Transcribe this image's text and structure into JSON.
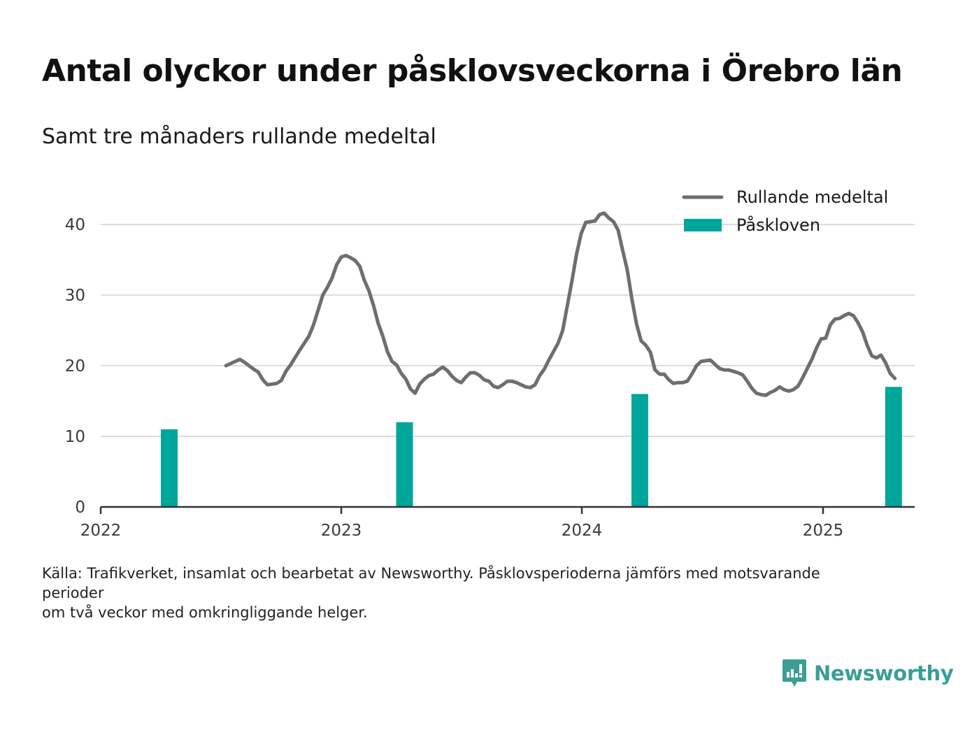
{
  "title": "Antal olyckor under påsklovsveckorna i Örebro län",
  "subtitle": "Samt tre månaders rullande medeltal",
  "footnote": {
    "line1": "Källa: Trafikverket, insamlat och bearbetat av Newsworthy. Påsklovsperioderna jämförs med motsvarande",
    "line2": "perioder",
    "line3": "om två veckor med omkringliggande helger."
  },
  "logo": {
    "text": "Newsworthy",
    "icon": "bar-chart-speech-bubble-icon",
    "color": "#3a9e95"
  },
  "colors": {
    "line": "#6e6e70",
    "bars": "#00a699",
    "grid": "#dddddd",
    "axis": "#333333"
  },
  "chart_data": {
    "type": "bar+line",
    "xlabel": "",
    "ylabel": "",
    "xlim": [
      "2022-01-01",
      "2025-05-20"
    ],
    "ylim": [
      0,
      42
    ],
    "y_ticks": [
      0,
      10,
      20,
      30,
      40
    ],
    "x_ticks": [
      {
        "label": "2022",
        "date": "2022-01-01"
      },
      {
        "label": "2023",
        "date": "2023-01-01"
      },
      {
        "label": "2024",
        "date": "2024-01-01"
      },
      {
        "label": "2025",
        "date": "2025-01-01"
      }
    ],
    "grid": true,
    "legend": {
      "placement": "top-right",
      "items": [
        "Rullande medeltal",
        "Påskloven"
      ]
    },
    "series": [
      {
        "name": "Påskloven",
        "type": "bar",
        "points": [
          {
            "x": "2022-04-15",
            "y": 11
          },
          {
            "x": "2023-04-07",
            "y": 12
          },
          {
            "x": "2024-03-29",
            "y": 16
          },
          {
            "x": "2025-04-18",
            "y": 17
          }
        ]
      },
      {
        "name": "Rullande medeltal",
        "type": "line",
        "points": [
          {
            "x": "2022-07-10",
            "y": 20.0
          },
          {
            "x": "2022-07-31",
            "y": 20.9
          },
          {
            "x": "2022-08-07",
            "y": 20.5
          },
          {
            "x": "2022-08-21",
            "y": 19.5
          },
          {
            "x": "2022-08-28",
            "y": 19.1
          },
          {
            "x": "2022-09-04",
            "y": 18.0
          },
          {
            "x": "2022-09-11",
            "y": 17.3
          },
          {
            "x": "2022-09-25",
            "y": 17.5
          },
          {
            "x": "2022-10-02",
            "y": 17.9
          },
          {
            "x": "2022-10-09",
            "y": 19.2
          },
          {
            "x": "2022-10-16",
            "y": 20.1
          },
          {
            "x": "2022-10-30",
            "y": 22.2
          },
          {
            "x": "2022-11-13",
            "y": 24.2
          },
          {
            "x": "2022-11-20",
            "y": 25.8
          },
          {
            "x": "2022-11-27",
            "y": 27.9
          },
          {
            "x": "2022-12-04",
            "y": 30.0
          },
          {
            "x": "2022-12-11",
            "y": 31.1
          },
          {
            "x": "2022-12-18",
            "y": 32.4
          },
          {
            "x": "2022-12-25",
            "y": 34.3
          },
          {
            "x": "2023-01-01",
            "y": 35.4
          },
          {
            "x": "2023-01-08",
            "y": 35.6
          },
          {
            "x": "2023-01-15",
            "y": 35.3
          },
          {
            "x": "2023-01-22",
            "y": 34.9
          },
          {
            "x": "2023-01-29",
            "y": 34.1
          },
          {
            "x": "2023-02-05",
            "y": 32.1
          },
          {
            "x": "2023-02-12",
            "y": 30.6
          },
          {
            "x": "2023-02-19",
            "y": 28.5
          },
          {
            "x": "2023-02-26",
            "y": 26.0
          },
          {
            "x": "2023-03-05",
            "y": 24.2
          },
          {
            "x": "2023-03-12",
            "y": 22.0
          },
          {
            "x": "2023-03-19",
            "y": 20.6
          },
          {
            "x": "2023-03-26",
            "y": 20.1
          },
          {
            "x": "2023-04-02",
            "y": 18.9
          },
          {
            "x": "2023-04-09",
            "y": 18.1
          },
          {
            "x": "2023-04-16",
            "y": 16.7
          },
          {
            "x": "2023-04-23",
            "y": 16.1
          },
          {
            "x": "2023-04-30",
            "y": 17.4
          },
          {
            "x": "2023-05-07",
            "y": 18.1
          },
          {
            "x": "2023-05-14",
            "y": 18.6
          },
          {
            "x": "2023-05-21",
            "y": 18.8
          },
          {
            "x": "2023-05-28",
            "y": 19.4
          },
          {
            "x": "2023-06-04",
            "y": 19.8
          },
          {
            "x": "2023-06-11",
            "y": 19.3
          },
          {
            "x": "2023-06-18",
            "y": 18.5
          },
          {
            "x": "2023-06-25",
            "y": 17.9
          },
          {
            "x": "2023-07-02",
            "y": 17.6
          },
          {
            "x": "2023-07-09",
            "y": 18.4
          },
          {
            "x": "2023-07-16",
            "y": 19.0
          },
          {
            "x": "2023-07-23",
            "y": 19.0
          },
          {
            "x": "2023-07-30",
            "y": 18.6
          },
          {
            "x": "2023-08-06",
            "y": 18.0
          },
          {
            "x": "2023-08-13",
            "y": 17.8
          },
          {
            "x": "2023-08-20",
            "y": 17.1
          },
          {
            "x": "2023-08-27",
            "y": 16.9
          },
          {
            "x": "2023-09-03",
            "y": 17.3
          },
          {
            "x": "2023-09-10",
            "y": 17.8
          },
          {
            "x": "2023-09-17",
            "y": 17.8
          },
          {
            "x": "2023-09-24",
            "y": 17.6
          },
          {
            "x": "2023-10-01",
            "y": 17.3
          },
          {
            "x": "2023-10-08",
            "y": 17.0
          },
          {
            "x": "2023-10-15",
            "y": 16.9
          },
          {
            "x": "2023-10-22",
            "y": 17.3
          },
          {
            "x": "2023-10-29",
            "y": 18.6
          },
          {
            "x": "2023-11-05",
            "y": 19.5
          },
          {
            "x": "2023-11-12",
            "y": 20.8
          },
          {
            "x": "2023-11-19",
            "y": 22.0
          },
          {
            "x": "2023-11-26",
            "y": 23.2
          },
          {
            "x": "2023-12-03",
            "y": 25.0
          },
          {
            "x": "2023-12-10",
            "y": 28.5
          },
          {
            "x": "2023-12-17",
            "y": 32.0
          },
          {
            "x": "2023-12-24",
            "y": 35.8
          },
          {
            "x": "2023-12-31",
            "y": 38.7
          },
          {
            "x": "2024-01-07",
            "y": 40.3
          },
          {
            "x": "2024-01-14",
            "y": 40.4
          },
          {
            "x": "2024-01-21",
            "y": 40.5
          },
          {
            "x": "2024-01-28",
            "y": 41.4
          },
          {
            "x": "2024-02-04",
            "y": 41.6
          },
          {
            "x": "2024-02-11",
            "y": 40.9
          },
          {
            "x": "2024-02-18",
            "y": 40.4
          },
          {
            "x": "2024-02-25",
            "y": 39.2
          },
          {
            "x": "2024-03-03",
            "y": 36.3
          },
          {
            "x": "2024-03-10",
            "y": 33.5
          },
          {
            "x": "2024-03-17",
            "y": 29.4
          },
          {
            "x": "2024-03-24",
            "y": 25.9
          },
          {
            "x": "2024-03-31",
            "y": 23.5
          },
          {
            "x": "2024-04-07",
            "y": 22.9
          },
          {
            "x": "2024-04-14",
            "y": 21.9
          },
          {
            "x": "2024-04-21",
            "y": 19.4
          },
          {
            "x": "2024-04-28",
            "y": 18.8
          },
          {
            "x": "2024-05-05",
            "y": 18.8
          },
          {
            "x": "2024-05-12",
            "y": 18.0
          },
          {
            "x": "2024-05-19",
            "y": 17.5
          },
          {
            "x": "2024-05-26",
            "y": 17.6
          },
          {
            "x": "2024-06-02",
            "y": 17.6
          },
          {
            "x": "2024-06-09",
            "y": 17.8
          },
          {
            "x": "2024-06-16",
            "y": 18.8
          },
          {
            "x": "2024-06-23",
            "y": 20.0
          },
          {
            "x": "2024-06-30",
            "y": 20.6
          },
          {
            "x": "2024-07-07",
            "y": 20.7
          },
          {
            "x": "2024-07-14",
            "y": 20.8
          },
          {
            "x": "2024-07-21",
            "y": 20.2
          },
          {
            "x": "2024-07-28",
            "y": 19.6
          },
          {
            "x": "2024-08-04",
            "y": 19.4
          },
          {
            "x": "2024-08-11",
            "y": 19.4
          },
          {
            "x": "2024-08-18",
            "y": 19.2
          },
          {
            "x": "2024-08-25",
            "y": 19.0
          },
          {
            "x": "2024-09-01",
            "y": 18.7
          },
          {
            "x": "2024-09-08",
            "y": 17.8
          },
          {
            "x": "2024-09-15",
            "y": 16.8
          },
          {
            "x": "2024-09-22",
            "y": 16.1
          },
          {
            "x": "2024-09-29",
            "y": 15.9
          },
          {
            "x": "2024-10-06",
            "y": 15.8
          },
          {
            "x": "2024-10-13",
            "y": 16.2
          },
          {
            "x": "2024-10-20",
            "y": 16.5
          },
          {
            "x": "2024-10-27",
            "y": 17.0
          },
          {
            "x": "2024-11-03",
            "y": 16.6
          },
          {
            "x": "2024-11-10",
            "y": 16.4
          },
          {
            "x": "2024-11-17",
            "y": 16.6
          },
          {
            "x": "2024-11-24",
            "y": 17.1
          },
          {
            "x": "2024-12-01",
            "y": 18.3
          },
          {
            "x": "2024-12-08",
            "y": 19.6
          },
          {
            "x": "2024-12-15",
            "y": 20.9
          },
          {
            "x": "2024-12-22",
            "y": 22.5
          },
          {
            "x": "2024-12-29",
            "y": 23.8
          },
          {
            "x": "2025-01-05",
            "y": 23.9
          },
          {
            "x": "2025-01-12",
            "y": 25.8
          },
          {
            "x": "2025-01-19",
            "y": 26.6
          },
          {
            "x": "2025-01-26",
            "y": 26.7
          },
          {
            "x": "2025-02-02",
            "y": 27.1
          },
          {
            "x": "2025-02-09",
            "y": 27.4
          },
          {
            "x": "2025-02-16",
            "y": 27.1
          },
          {
            "x": "2025-02-23",
            "y": 26.1
          },
          {
            "x": "2025-03-02",
            "y": 24.8
          },
          {
            "x": "2025-03-09",
            "y": 22.9
          },
          {
            "x": "2025-03-16",
            "y": 21.4
          },
          {
            "x": "2025-03-23",
            "y": 21.1
          },
          {
            "x": "2025-03-30",
            "y": 21.5
          },
          {
            "x": "2025-04-06",
            "y": 20.4
          },
          {
            "x": "2025-04-13",
            "y": 18.9
          },
          {
            "x": "2025-04-20",
            "y": 18.2
          }
        ]
      }
    ]
  }
}
